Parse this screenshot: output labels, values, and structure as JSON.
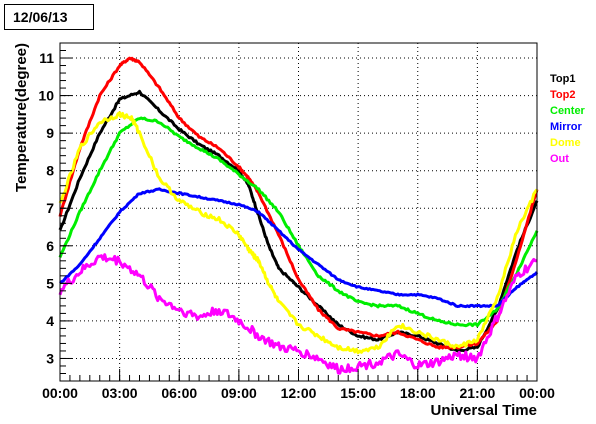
{
  "title": "12/06/13",
  "chart_data": {
    "type": "line",
    "title": "12/06/13",
    "xlabel": "Universal Time",
    "ylabel": "Temperature(degree)",
    "x_unit": "hours",
    "xlim": [
      0,
      24
    ],
    "ylim": [
      2.4,
      11.4
    ],
    "x_ticks": [
      0,
      3,
      6,
      9,
      12,
      15,
      18,
      21,
      24
    ],
    "x_tick_labels": [
      "00:00",
      "03:00",
      "06:00",
      "09:00",
      "12:00",
      "15:00",
      "18:00",
      "21:00",
      "00:00"
    ],
    "y_ticks": [
      3,
      4,
      5,
      6,
      7,
      8,
      9,
      10,
      11
    ],
    "y_tick_labels": [
      "3",
      "4",
      "5",
      "6",
      "7",
      "8",
      "9",
      "10",
      "11"
    ],
    "grid": true,
    "legend_position": "right",
    "series": [
      {
        "name": "Top1",
        "color": "#000000",
        "points": [
          [
            0,
            6.4
          ],
          [
            1,
            7.8
          ],
          [
            2,
            9.0
          ],
          [
            3,
            9.9
          ],
          [
            4,
            10.1
          ],
          [
            5,
            9.6
          ],
          [
            6,
            9.1
          ],
          [
            7,
            8.7
          ],
          [
            8,
            8.4
          ],
          [
            9,
            8.0
          ],
          [
            9.5,
            7.6
          ],
          [
            10,
            6.8
          ],
          [
            10.5,
            6.0
          ],
          [
            11,
            5.4
          ],
          [
            12,
            4.9
          ],
          [
            13,
            4.4
          ],
          [
            14,
            3.9
          ],
          [
            15,
            3.6
          ],
          [
            16,
            3.5
          ],
          [
            17,
            3.7
          ],
          [
            18,
            3.6
          ],
          [
            19,
            3.4
          ],
          [
            20,
            3.2
          ],
          [
            21,
            3.3
          ],
          [
            22,
            4.3
          ],
          [
            23,
            5.9
          ],
          [
            24,
            7.2
          ]
        ]
      },
      {
        "name": "Top2",
        "color": "#ff0000",
        "points": [
          [
            0,
            6.8
          ],
          [
            1,
            8.6
          ],
          [
            2,
            10.0
          ],
          [
            3,
            10.8
          ],
          [
            3.5,
            11.0
          ],
          [
            4,
            10.9
          ],
          [
            5,
            10.2
          ],
          [
            6,
            9.4
          ],
          [
            7,
            8.9
          ],
          [
            8,
            8.6
          ],
          [
            9,
            8.1
          ],
          [
            9.5,
            7.8
          ],
          [
            10,
            7.4
          ],
          [
            11,
            6.3
          ],
          [
            12,
            5.1
          ],
          [
            13,
            4.3
          ],
          [
            14,
            3.8
          ],
          [
            15,
            3.7
          ],
          [
            16,
            3.6
          ],
          [
            17,
            3.7
          ],
          [
            18,
            3.5
          ],
          [
            19,
            3.3
          ],
          [
            20,
            3.3
          ],
          [
            21,
            3.4
          ],
          [
            22,
            4.0
          ],
          [
            23,
            5.7
          ],
          [
            24,
            7.5
          ]
        ]
      },
      {
        "name": "Center",
        "color": "#00ee00",
        "points": [
          [
            0,
            5.7
          ],
          [
            1,
            6.9
          ],
          [
            2,
            8.0
          ],
          [
            3,
            9.0
          ],
          [
            4,
            9.4
          ],
          [
            5,
            9.3
          ],
          [
            6,
            8.9
          ],
          [
            7,
            8.6
          ],
          [
            8,
            8.3
          ],
          [
            9,
            7.9
          ],
          [
            10,
            7.5
          ],
          [
            11,
            6.9
          ],
          [
            12,
            6.0
          ],
          [
            13,
            5.2
          ],
          [
            14,
            4.8
          ],
          [
            15,
            4.5
          ],
          [
            16,
            4.4
          ],
          [
            17,
            4.4
          ],
          [
            18,
            4.2
          ],
          [
            19,
            4.0
          ],
          [
            20,
            3.9
          ],
          [
            21,
            3.9
          ],
          [
            22,
            4.3
          ],
          [
            23,
            5.3
          ],
          [
            24,
            6.4
          ]
        ]
      },
      {
        "name": "Mirror",
        "color": "#0000ff",
        "points": [
          [
            0,
            5.0
          ],
          [
            1,
            5.5
          ],
          [
            2,
            6.2
          ],
          [
            3,
            6.9
          ],
          [
            4,
            7.4
          ],
          [
            5,
            7.5
          ],
          [
            6,
            7.4
          ],
          [
            7,
            7.3
          ],
          [
            8,
            7.2
          ],
          [
            9,
            7.1
          ],
          [
            10,
            6.9
          ],
          [
            11,
            6.4
          ],
          [
            12,
            5.9
          ],
          [
            13,
            5.5
          ],
          [
            14,
            5.1
          ],
          [
            15,
            4.9
          ],
          [
            16,
            4.8
          ],
          [
            17,
            4.7
          ],
          [
            18,
            4.7
          ],
          [
            19,
            4.6
          ],
          [
            20,
            4.4
          ],
          [
            21,
            4.4
          ],
          [
            22,
            4.4
          ],
          [
            23,
            4.9
          ],
          [
            24,
            5.3
          ]
        ]
      },
      {
        "name": "Dome",
        "color": "#ffff00",
        "points": [
          [
            0,
            7.1
          ],
          [
            1,
            8.6
          ],
          [
            2,
            9.3
          ],
          [
            3,
            9.5
          ],
          [
            3.6,
            9.4
          ],
          [
            4,
            9.0
          ],
          [
            5,
            7.8
          ],
          [
            6,
            7.2
          ],
          [
            7,
            6.9
          ],
          [
            8,
            6.7
          ],
          [
            9,
            6.3
          ],
          [
            9.5,
            5.9
          ],
          [
            9.8,
            5.7
          ],
          [
            10,
            5.6
          ],
          [
            10.5,
            5.0
          ],
          [
            11,
            4.5
          ],
          [
            12,
            3.9
          ],
          [
            13,
            3.6
          ],
          [
            14,
            3.3
          ],
          [
            15,
            3.2
          ],
          [
            16,
            3.3
          ],
          [
            17,
            3.9
          ],
          [
            18,
            3.7
          ],
          [
            19,
            3.5
          ],
          [
            20,
            3.3
          ],
          [
            21,
            3.5
          ],
          [
            22,
            4.6
          ],
          [
            23,
            6.4
          ],
          [
            24,
            7.5
          ]
        ]
      },
      {
        "name": "Out",
        "color": "#ff00ff",
        "points": [
          [
            0,
            4.8
          ],
          [
            1,
            5.3
          ],
          [
            2,
            5.7
          ],
          [
            3,
            5.6
          ],
          [
            4,
            5.2
          ],
          [
            5,
            4.6
          ],
          [
            6,
            4.3
          ],
          [
            7,
            4.1
          ],
          [
            8,
            4.3
          ],
          [
            9,
            4.0
          ],
          [
            10,
            3.6
          ],
          [
            11,
            3.3
          ],
          [
            12,
            3.2
          ],
          [
            13,
            3.0
          ],
          [
            14,
            2.7
          ],
          [
            15,
            2.8
          ],
          [
            16,
            2.9
          ],
          [
            17,
            3.1
          ],
          [
            18,
            2.8
          ],
          [
            19,
            2.9
          ],
          [
            20,
            3.1
          ],
          [
            21,
            3.0
          ],
          [
            22,
            4.1
          ],
          [
            23,
            5.2
          ],
          [
            24,
            5.6
          ]
        ]
      }
    ]
  }
}
